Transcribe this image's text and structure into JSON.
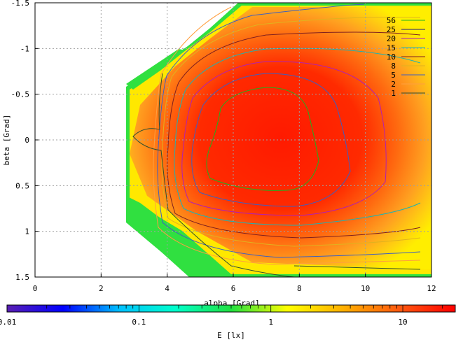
{
  "chart_data": {
    "type": "heatmap",
    "title": "",
    "xlabel": "alpha [Grad]",
    "ylabel": "beta [Grad]",
    "xlim": [
      0,
      12
    ],
    "ylim": [
      -1.5,
      1.5
    ],
    "y_axis_inverted": true,
    "grid": true,
    "xticks": [
      "0",
      "2",
      "4",
      "6",
      "8",
      "10",
      "12"
    ],
    "yticks": [
      "-1.5",
      "-1",
      "-0.5",
      "0",
      "0.5",
      "1",
      "1.5"
    ],
    "legend": {
      "placement": "top-right",
      "entries": [
        {
          "label": "56",
          "color": "#1fb21f"
        },
        {
          "label": "25",
          "color": "#1f1f7f"
        },
        {
          "label": "20",
          "color": "#b21fb2"
        },
        {
          "label": "15",
          "color": "#1fb2b2"
        },
        {
          "label": "10",
          "color": "#7f1f1f"
        },
        {
          "label": "8",
          "color": "#e0b21f"
        },
        {
          "label": "5",
          "color": "#3f5fbf"
        },
        {
          "label": "2",
          "color": "#ff9f3f"
        },
        {
          "label": "1",
          "color": "#2f4f2f"
        }
      ]
    },
    "colorbar": {
      "label": "E [lx]",
      "scale": "log",
      "range": [
        0.01,
        25
      ],
      "ticks": [
        "0.01",
        "0.1",
        "1",
        "10"
      ],
      "colors": [
        "#5a1fb2",
        "#0000ff",
        "#00c0ff",
        "#00ffcc",
        "#20e040",
        "#ffff00",
        "#ffb000",
        "#ff5a10",
        "#ff0000"
      ]
    }
  }
}
